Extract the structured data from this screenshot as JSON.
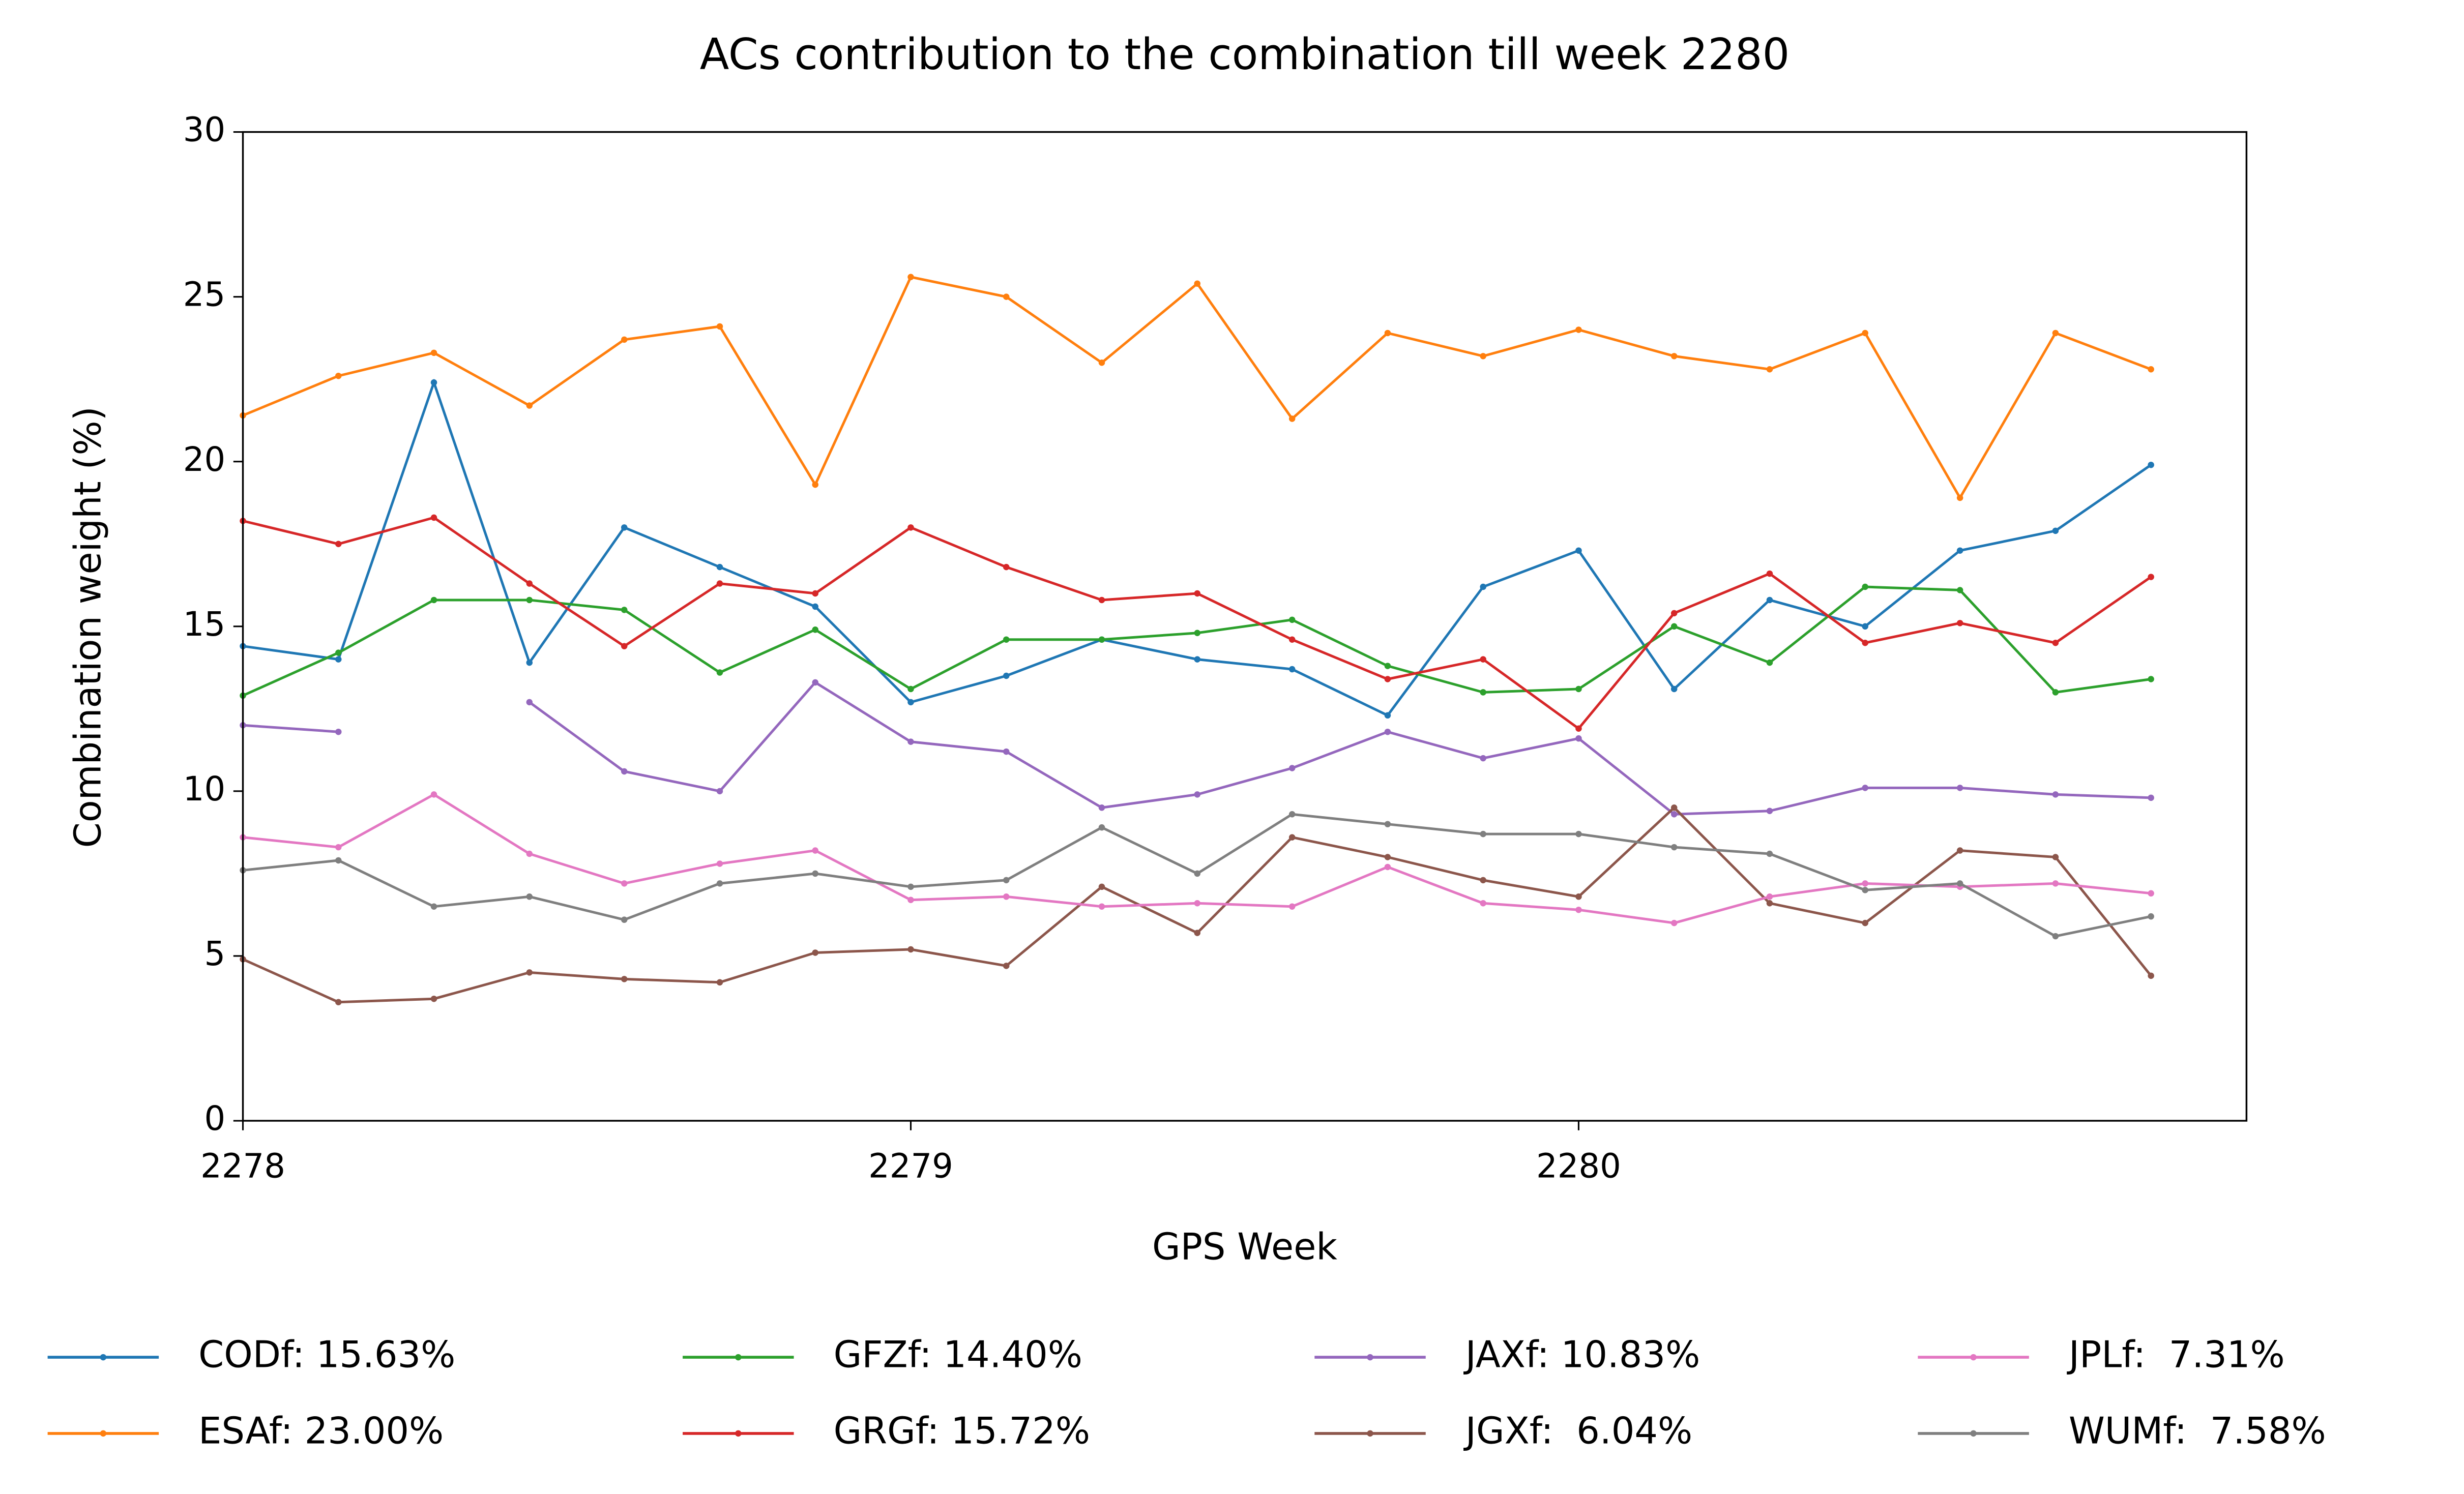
{
  "chart_data": {
    "type": "line",
    "title": "ACs contribution to the combination till week 2280",
    "x_label": "GPS Week",
    "y_label": "Combination weight (%)",
    "x": [
      2278,
      2278.143,
      2278.286,
      2278.429,
      2278.571,
      2278.714,
      2278.857,
      2279,
      2279.143,
      2279.286,
      2279.429,
      2279.571,
      2279.714,
      2279.857,
      2280,
      2280.143,
      2280.286,
      2280.429,
      2280.571,
      2280.714,
      2280.857
    ],
    "xlim": [
      2278,
      2281
    ],
    "xticks": [
      2278,
      2279,
      2280
    ],
    "ylim": [
      0,
      30
    ],
    "yticks": [
      0,
      5,
      10,
      15,
      20,
      25,
      30
    ],
    "series": [
      {
        "name": "CODf: 15.63%",
        "color": "#1f77b4",
        "values": [
          14.4,
          14.0,
          22.4,
          13.9,
          18.0,
          16.8,
          15.6,
          12.7,
          13.5,
          14.6,
          14.0,
          13.7,
          12.3,
          16.2,
          17.3,
          13.1,
          15.8,
          15.0,
          17.3,
          17.9,
          19.9
        ]
      },
      {
        "name": "ESAf: 23.00%",
        "color": "#ff7f0e",
        "values": [
          21.4,
          22.6,
          23.3,
          21.7,
          23.7,
          24.1,
          19.3,
          25.6,
          25.0,
          23.0,
          25.4,
          21.3,
          23.9,
          23.2,
          24.0,
          23.2,
          22.8,
          23.9,
          18.9,
          23.9,
          22.8
        ]
      },
      {
        "name": "GFZf: 14.40%",
        "color": "#2ca02c",
        "values": [
          12.9,
          14.2,
          15.8,
          15.8,
          15.5,
          13.6,
          14.9,
          13.1,
          14.6,
          14.6,
          14.8,
          15.2,
          13.8,
          13.0,
          13.1,
          15.0,
          13.9,
          16.2,
          16.1,
          13.0,
          13.4
        ]
      },
      {
        "name": "GRGf: 15.72%",
        "color": "#d62728",
        "values": [
          18.2,
          17.5,
          18.3,
          16.3,
          14.4,
          16.3,
          16.0,
          18.0,
          16.8,
          15.8,
          16.0,
          14.6,
          13.4,
          14.0,
          11.9,
          15.4,
          16.6,
          14.5,
          15.1,
          14.5,
          16.5
        ]
      },
      {
        "name": "JAXf: 10.83%",
        "color": "#9467bd",
        "values": [
          12.0,
          11.8,
          null,
          12.7,
          10.6,
          10.0,
          13.3,
          11.5,
          11.2,
          9.5,
          9.9,
          10.7,
          11.8,
          11.0,
          11.6,
          9.3,
          9.4,
          10.1,
          10.1,
          9.9,
          9.8
        ]
      },
      {
        "name": "JGXf:  6.04%",
        "color": "#8c564b",
        "values": [
          4.9,
          3.6,
          3.7,
          4.5,
          4.3,
          4.2,
          5.1,
          5.2,
          4.7,
          7.1,
          5.7,
          8.6,
          8.0,
          7.3,
          6.8,
          9.5,
          6.6,
          6.0,
          8.2,
          8.0,
          4.4
        ]
      },
      {
        "name": "JPLf:  7.31%",
        "color": "#e377c2",
        "values": [
          8.6,
          8.3,
          9.9,
          8.1,
          7.2,
          7.8,
          8.2,
          6.7,
          6.8,
          6.5,
          6.6,
          6.5,
          7.7,
          6.6,
          6.4,
          6.0,
          6.8,
          7.2,
          7.1,
          7.2,
          6.9
        ]
      },
      {
        "name": "WUMf:  7.58%",
        "color": "#7f7f7f",
        "values": [
          7.6,
          7.9,
          6.5,
          6.8,
          6.1,
          7.2,
          7.5,
          7.1,
          7.3,
          8.9,
          7.5,
          9.3,
          9.0,
          8.7,
          8.7,
          8.3,
          8.1,
          7.0,
          7.2,
          5.6,
          6.2
        ]
      }
    ]
  }
}
